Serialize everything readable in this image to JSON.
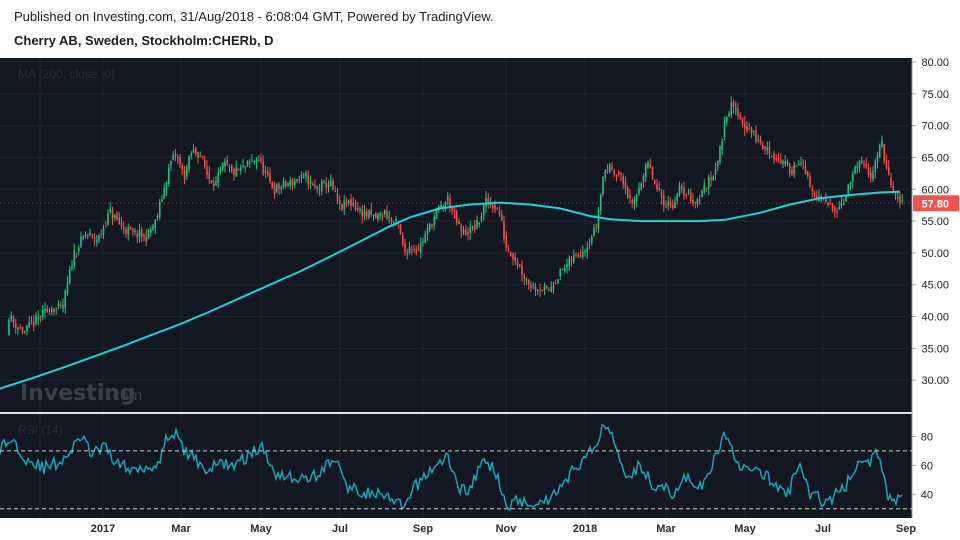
{
  "header": {
    "published": "Published on Investing.com, 31/Aug/2018 - 6:08:04 GMT, Powered by TradingView.",
    "symbol_title": "Cherry AB, Sweden, Stockholm:CHERb, D"
  },
  "watermark": {
    "brand": "Investing",
    "suffix": ".com"
  },
  "colors": {
    "background": "#131722",
    "up": "#26c281",
    "down": "#ef5350",
    "ma": "#1fd3d3",
    "rsi": "#1fa3b5",
    "last_price_bg": "#ef5350",
    "axis_bg": "#ffffff"
  },
  "chart_data": [
    {
      "type": "candlestick",
      "study_label": "MA (200, close, 0)",
      "ylim": [
        25,
        80
      ],
      "yticks": [
        30,
        35,
        40,
        45,
        50,
        55,
        60,
        65,
        70,
        75,
        80
      ],
      "ytick_labels": [
        "30.00",
        "35.00",
        "40.00",
        "45.00",
        "50.00",
        "55.00",
        "60.00",
        "65.00",
        "70.00",
        "75.00",
        "80.00"
      ],
      "last_price": 57.8,
      "last_price_label": "57.80",
      "x_labels": [
        "2017",
        "Mar",
        "May",
        "Jul",
        "Sep",
        "Nov",
        "2018",
        "Mar",
        "May",
        "Jul",
        "Sep"
      ],
      "close_path": [
        [
          0,
          35.5
        ],
        [
          6,
          41
        ],
        [
          14,
          39
        ],
        [
          24,
          37.5
        ],
        [
          40,
          40
        ],
        [
          52,
          41.5
        ],
        [
          62,
          41
        ],
        [
          74,
          50
        ],
        [
          86,
          53
        ],
        [
          98,
          52
        ],
        [
          110,
          56.5
        ],
        [
          122,
          54
        ],
        [
          134,
          53
        ],
        [
          146,
          52.5
        ],
        [
          156,
          55
        ],
        [
          164,
          60
        ],
        [
          170,
          64
        ],
        [
          176,
          65.5
        ],
        [
          184,
          62
        ],
        [
          192,
          66
        ],
        [
          200,
          65.5
        ],
        [
          208,
          62
        ],
        [
          216,
          61
        ],
        [
          224,
          64
        ],
        [
          232,
          62.5
        ],
        [
          240,
          63
        ],
        [
          250,
          64
        ],
        [
          258,
          65
        ],
        [
          266,
          62
        ],
        [
          274,
          60
        ],
        [
          282,
          60.5
        ],
        [
          290,
          61
        ],
        [
          298,
          61.5
        ],
        [
          306,
          62
        ],
        [
          314,
          60
        ],
        [
          322,
          60.5
        ],
        [
          330,
          61
        ],
        [
          340,
          57
        ],
        [
          350,
          58
        ],
        [
          360,
          56.5
        ],
        [
          368,
          56
        ],
        [
          376,
          55.5
        ],
        [
          384,
          56.5
        ],
        [
          392,
          55
        ],
        [
          398,
          54.5
        ],
        [
          404,
          50
        ],
        [
          410,
          51
        ],
        [
          418,
          50.5
        ],
        [
          426,
          53
        ],
        [
          432,
          55
        ],
        [
          440,
          57
        ],
        [
          448,
          58.5
        ],
        [
          456,
          55
        ],
        [
          462,
          53
        ],
        [
          470,
          53.5
        ],
        [
          478,
          54.5
        ],
        [
          486,
          58
        ],
        [
          494,
          57.5
        ],
        [
          500,
          56
        ],
        [
          506,
          51
        ],
        [
          514,
          49.5
        ],
        [
          522,
          47
        ],
        [
          530,
          45
        ],
        [
          540,
          44.5
        ],
        [
          548,
          44
        ],
        [
          556,
          46
        ],
        [
          564,
          47.5
        ],
        [
          572,
          49
        ],
        [
          580,
          50
        ],
        [
          588,
          51.5
        ],
        [
          596,
          54
        ],
        [
          604,
          63
        ],
        [
          612,
          63.5
        ],
        [
          620,
          62
        ],
        [
          626,
          60
        ],
        [
          632,
          57
        ],
        [
          640,
          61
        ],
        [
          648,
          64
        ],
        [
          656,
          60
        ],
        [
          664,
          58
        ],
        [
          672,
          57.5
        ],
        [
          680,
          60
        ],
        [
          688,
          59
        ],
        [
          696,
          58
        ],
        [
          704,
          60
        ],
        [
          712,
          62
        ],
        [
          720,
          66
        ],
        [
          726,
          72
        ],
        [
          732,
          73
        ],
        [
          738,
          72
        ],
        [
          744,
          70
        ],
        [
          752,
          69
        ],
        [
          760,
          67
        ],
        [
          768,
          66
        ],
        [
          776,
          65
        ],
        [
          784,
          64
        ],
        [
          792,
          63
        ],
        [
          800,
          65
        ],
        [
          806,
          62
        ],
        [
          814,
          59
        ],
        [
          822,
          58
        ],
        [
          830,
          57.5
        ],
        [
          838,
          57
        ],
        [
          846,
          59
        ],
        [
          854,
          63
        ],
        [
          862,
          64
        ],
        [
          870,
          62
        ],
        [
          876,
          65
        ],
        [
          882,
          67
        ],
        [
          888,
          62
        ],
        [
          894,
          59
        ],
        [
          900,
          57.8
        ]
      ],
      "ma_path": [
        [
          0,
          28.7
        ],
        [
          30,
          30.2
        ],
        [
          60,
          31.8
        ],
        [
          90,
          33.5
        ],
        [
          120,
          35.2
        ],
        [
          150,
          37.0
        ],
        [
          180,
          38.8
        ],
        [
          210,
          40.8
        ],
        [
          240,
          42.9
        ],
        [
          270,
          45.0
        ],
        [
          300,
          47.1
        ],
        [
          330,
          49.4
        ],
        [
          360,
          51.8
        ],
        [
          390,
          54.2
        ],
        [
          410,
          55.6
        ],
        [
          440,
          57.0
        ],
        [
          470,
          57.6
        ],
        [
          500,
          57.9
        ],
        [
          530,
          57.6
        ],
        [
          560,
          57.0
        ],
        [
          590,
          55.8
        ],
        [
          610,
          55.3
        ],
        [
          640,
          55.0
        ],
        [
          670,
          55.0
        ],
        [
          700,
          55.0
        ],
        [
          725,
          55.2
        ],
        [
          760,
          56.3
        ],
        [
          790,
          57.6
        ],
        [
          820,
          58.6
        ],
        [
          850,
          59.1
        ],
        [
          880,
          59.5
        ],
        [
          900,
          59.6
        ]
      ]
    },
    {
      "type": "line",
      "study_label": "RSI (14)",
      "ylim": [
        25,
        90
      ],
      "yticks": [
        40,
        60,
        80
      ],
      "ytick_labels": [
        "40",
        "60",
        "80"
      ],
      "levels": [
        70,
        30
      ],
      "x_labels": [
        "2017",
        "Mar",
        "May",
        "Jul",
        "Sep",
        "Nov",
        "2018",
        "Mar",
        "May",
        "Jul",
        "Sep"
      ],
      "anchors": [
        [
          0,
          72
        ],
        [
          12,
          78
        ],
        [
          26,
          65
        ],
        [
          44,
          58
        ],
        [
          58,
          62
        ],
        [
          72,
          70
        ],
        [
          80,
          80
        ],
        [
          92,
          68
        ],
        [
          104,
          72
        ],
        [
          118,
          62
        ],
        [
          130,
          56
        ],
        [
          142,
          60
        ],
        [
          152,
          58
        ],
        [
          160,
          66
        ],
        [
          168,
          80
        ],
        [
          174,
          83
        ],
        [
          184,
          70
        ],
        [
          196,
          64
        ],
        [
          208,
          56
        ],
        [
          220,
          62
        ],
        [
          236,
          60
        ],
        [
          250,
          68
        ],
        [
          262,
          72
        ],
        [
          276,
          55
        ],
        [
          292,
          52
        ],
        [
          306,
          50
        ],
        [
          322,
          56
        ],
        [
          334,
          66
        ],
        [
          346,
          46
        ],
        [
          360,
          42
        ],
        [
          376,
          40
        ],
        [
          392,
          36
        ],
        [
          404,
          30
        ],
        [
          414,
          44
        ],
        [
          426,
          54
        ],
        [
          440,
          62
        ],
        [
          448,
          66
        ],
        [
          458,
          44
        ],
        [
          470,
          44
        ],
        [
          484,
          64
        ],
        [
          492,
          58
        ],
        [
          500,
          48
        ],
        [
          508,
          32
        ],
        [
          520,
          36
        ],
        [
          534,
          34
        ],
        [
          546,
          36
        ],
        [
          556,
          42
        ],
        [
          568,
          52
        ],
        [
          580,
          62
        ],
        [
          592,
          70
        ],
        [
          604,
          88
        ],
        [
          612,
          82
        ],
        [
          620,
          66
        ],
        [
          628,
          52
        ],
        [
          640,
          60
        ],
        [
          652,
          48
        ],
        [
          664,
          44
        ],
        [
          674,
          40
        ],
        [
          686,
          52
        ],
        [
          700,
          44
        ],
        [
          712,
          58
        ],
        [
          722,
          80
        ],
        [
          730,
          74
        ],
        [
          740,
          60
        ],
        [
          752,
          56
        ],
        [
          764,
          54
        ],
        [
          776,
          46
        ],
        [
          788,
          40
        ],
        [
          800,
          64
        ],
        [
          810,
          40
        ],
        [
          822,
          36
        ],
        [
          834,
          38
        ],
        [
          846,
          46
        ],
        [
          856,
          60
        ],
        [
          868,
          62
        ],
        [
          878,
          68
        ],
        [
          888,
          40
        ],
        [
          896,
          36
        ],
        [
          902,
          38
        ]
      ]
    }
  ]
}
